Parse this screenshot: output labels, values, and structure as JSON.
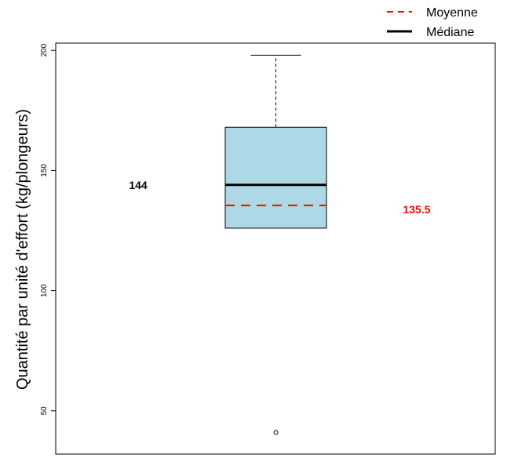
{
  "chart_data": {
    "type": "box",
    "ylabel": "Quantité par unité d'effort (kg/plongeurs)",
    "ylim": [
      32,
      203
    ],
    "yticks": [
      50,
      100,
      150,
      200
    ],
    "box": {
      "whisker_low": 126,
      "q1": 126,
      "median": 144,
      "mean": 135.5,
      "q3": 168,
      "whisker_high": 198,
      "outliers": [
        41
      ]
    },
    "annotations": {
      "median_label": "144",
      "mean_label": "135.5"
    },
    "legend": {
      "position": "top-right",
      "items": [
        {
          "label": "Moyenne",
          "style": "dashed",
          "color": "#ff0000"
        },
        {
          "label": "Médiane",
          "style": "solid",
          "color": "#000000"
        }
      ]
    },
    "colors": {
      "box_fill": "#add8e6",
      "mean": "#ff0000",
      "median": "#000000"
    }
  }
}
